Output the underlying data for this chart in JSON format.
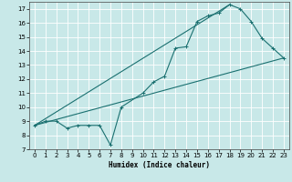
{
  "title": "",
  "xlabel": "Humidex (Indice chaleur)",
  "ylabel": "",
  "xlim": [
    -0.5,
    23.5
  ],
  "ylim": [
    7,
    17.5
  ],
  "xticks": [
    0,
    1,
    2,
    3,
    4,
    5,
    6,
    7,
    8,
    9,
    10,
    11,
    12,
    13,
    14,
    15,
    16,
    17,
    18,
    19,
    20,
    21,
    22,
    23
  ],
  "yticks": [
    7,
    8,
    9,
    10,
    11,
    12,
    13,
    14,
    15,
    16,
    17
  ],
  "bg_color": "#c8e8e8",
  "line_color": "#1a7070",
  "grid_color": "#ffffff",
  "line1_x": [
    0,
    1,
    2,
    3,
    4,
    5,
    6,
    7,
    8,
    10,
    11,
    12,
    13,
    14,
    15,
    16,
    17,
    18,
    19,
    20,
    21,
    22,
    23
  ],
  "line1_y": [
    8.7,
    9.0,
    9.0,
    8.5,
    8.7,
    8.7,
    8.7,
    7.3,
    10.0,
    11.0,
    11.8,
    12.2,
    14.2,
    14.3,
    16.1,
    16.5,
    16.7,
    17.3,
    17.0,
    16.1,
    14.9,
    14.2,
    13.5
  ],
  "line2_x": [
    0,
    23
  ],
  "line2_y": [
    8.7,
    13.5
  ],
  "line3_x": [
    0,
    18
  ],
  "line3_y": [
    8.7,
    17.3
  ]
}
